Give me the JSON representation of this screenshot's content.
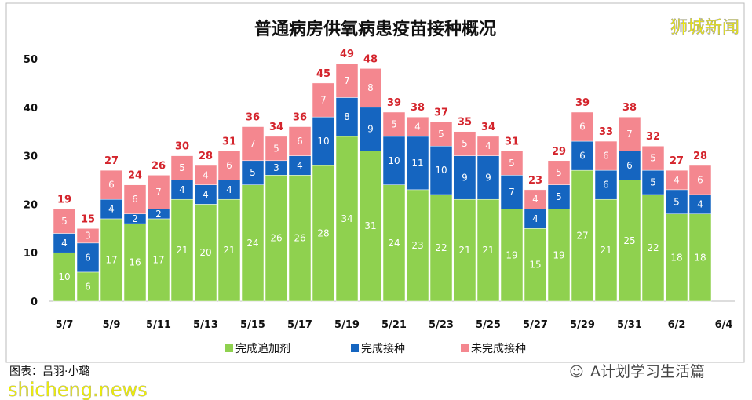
{
  "chart_data": {
    "type": "bar",
    "stacked": true,
    "title": "普通病房供氧病患疫苗接种概况",
    "xlabel": "",
    "ylabel": "",
    "ylim": [
      0,
      50
    ],
    "yticks": [
      0,
      10,
      20,
      30,
      40,
      50
    ],
    "categories": [
      "5/7",
      "5/8",
      "5/9",
      "5/10",
      "5/11",
      "5/12",
      "5/13",
      "5/14",
      "5/15",
      "5/16",
      "5/17",
      "5/18",
      "5/19",
      "5/20",
      "5/21",
      "5/22",
      "5/23",
      "5/24",
      "5/25",
      "5/26",
      "5/27",
      "5/28",
      "5/29",
      "5/30",
      "5/31",
      "6/1",
      "6/2",
      "6/3"
    ],
    "xtick_labels": [
      "5/7",
      "5/9",
      "5/11",
      "5/13",
      "5/15",
      "5/17",
      "5/19",
      "5/21",
      "5/23",
      "5/25",
      "5/27",
      "5/29",
      "5/31",
      "6/2",
      "6/4"
    ],
    "series": [
      {
        "name": "完成追加剂",
        "color": "#8fd14f",
        "values": [
          10,
          6,
          17,
          16,
          17,
          21,
          20,
          21,
          24,
          26,
          26,
          28,
          34,
          31,
          24,
          23,
          22,
          21,
          21,
          19,
          15,
          19,
          27,
          21,
          25,
          22,
          18,
          18
        ]
      },
      {
        "name": "完成接种",
        "color": "#1565c0",
        "values": [
          4,
          6,
          4,
          2,
          2,
          4,
          4,
          4,
          5,
          3,
          4,
          10,
          8,
          9,
          10,
          11,
          10,
          9,
          9,
          7,
          4,
          5,
          6,
          6,
          6,
          5,
          5,
          4
        ]
      },
      {
        "name": "未完成接种",
        "color": "#f4878f",
        "values": [
          5,
          3,
          6,
          6,
          7,
          5,
          4,
          6,
          7,
          5,
          6,
          7,
          7,
          8,
          5,
          4,
          5,
          5,
          4,
          5,
          4,
          5,
          6,
          6,
          7,
          5,
          4,
          6
        ]
      }
    ],
    "totals": [
      19,
      15,
      27,
      24,
      26,
      30,
      28,
      31,
      36,
      34,
      36,
      45,
      49,
      48,
      39,
      38,
      37,
      35,
      34,
      31,
      23,
      29,
      39,
      33,
      38,
      32,
      27,
      28
    ],
    "grid": false,
    "legend": "bottom",
    "total_color": "#d4242c"
  },
  "watermark": {
    "logo": "狮城新闻",
    "credit": "图表：吕羽·小璐",
    "site": "shicheng.news",
    "wechat": "A计划学习生活篇"
  }
}
